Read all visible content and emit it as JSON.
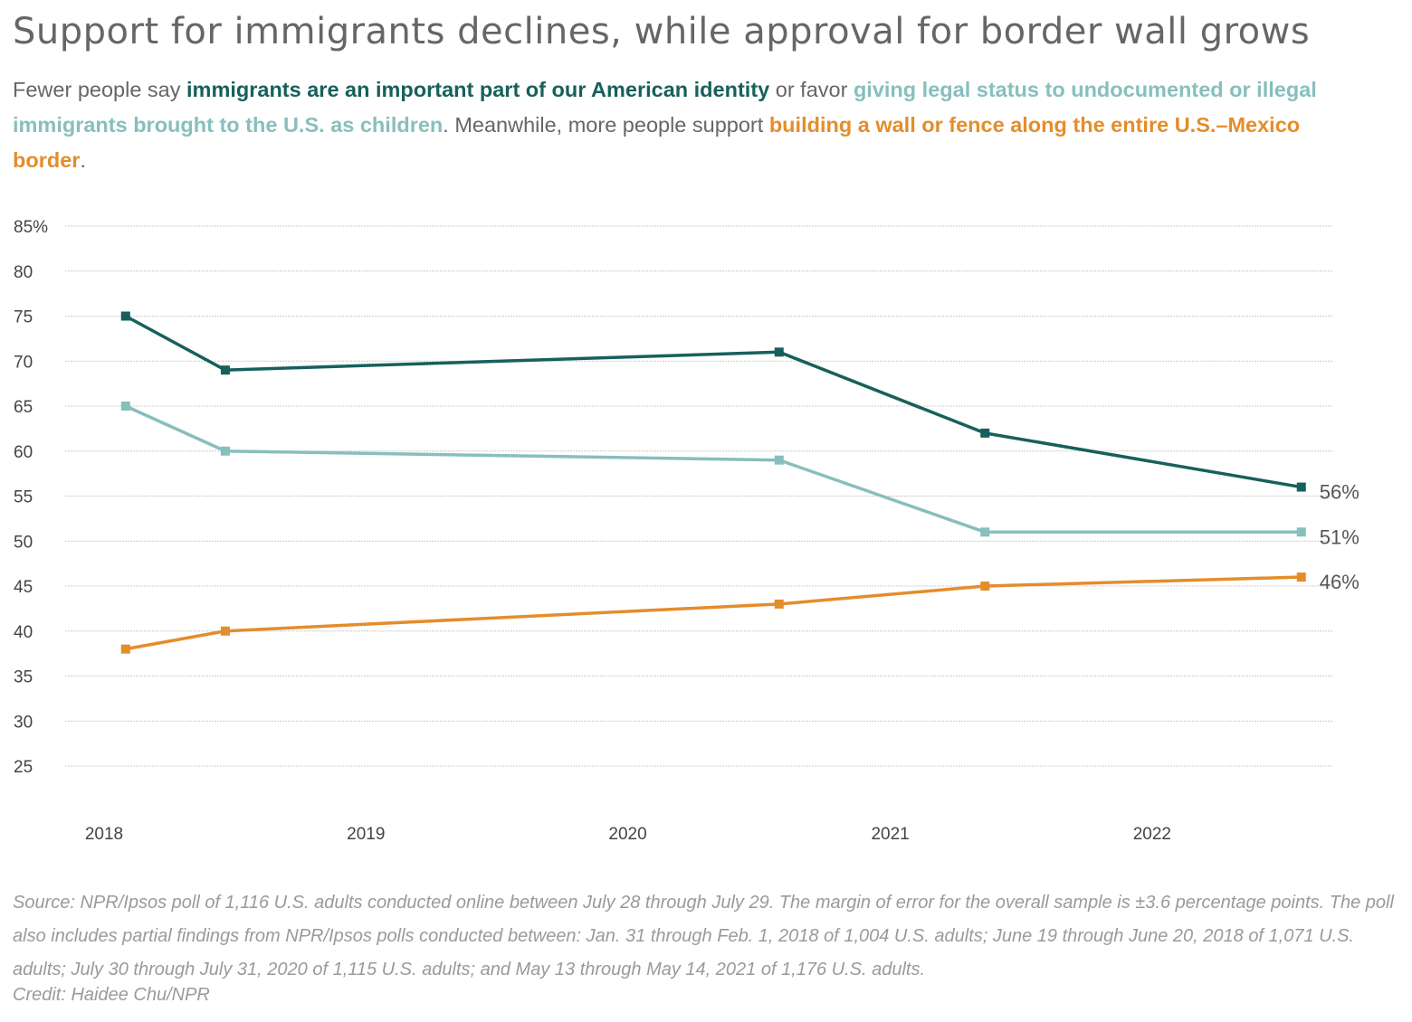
{
  "title": "Support for immigrants declines, while approval for border wall grows",
  "subtitle": {
    "p1": "Fewer people say ",
    "h1": "immigrants are an important part of our American identity",
    "p2": " or favor ",
    "h2": "giving legal status to undocumented or illegal immigrants brought to the U.S. as children",
    "p3": ". Meanwhile, more people support ",
    "h3": "building a wall or fence along the entire U.S.–Mexico border",
    "p4": "."
  },
  "colors": {
    "identity": "#17605c",
    "legal_status": "#87bfbd",
    "wall": "#e48d2b",
    "grid": "#cccccc",
    "text": "#666666"
  },
  "chart_data": {
    "type": "line",
    "x_ticks": [
      "2018",
      "2019",
      "2020",
      "2021",
      "2022"
    ],
    "x_tick_values": [
      "2018-01-01",
      "2019-01-01",
      "2020-01-01",
      "2021-01-01",
      "2022-01-01"
    ],
    "xlim": [
      "2018-01-01",
      "2022-08-15"
    ],
    "y_ticks": [
      "85%",
      "80",
      "75",
      "70",
      "65",
      "60",
      "55",
      "50",
      "45",
      "40",
      "35",
      "30",
      "25"
    ],
    "y_tick_values": [
      85,
      80,
      75,
      70,
      65,
      60,
      55,
      50,
      45,
      40,
      35,
      30,
      25
    ],
    "ylim": [
      25,
      85
    ],
    "grid": true,
    "x": [
      "2018-01-31",
      "2018-06-19",
      "2020-07-30",
      "2021-05-13",
      "2022-07-28"
    ],
    "series": [
      {
        "key": "identity",
        "values": [
          75,
          69,
          71,
          62,
          56
        ],
        "end_label": "56%"
      },
      {
        "key": "legal_status",
        "values": [
          65,
          60,
          59,
          51,
          51
        ],
        "end_label": "51%"
      },
      {
        "key": "wall",
        "values": [
          38,
          40,
          43,
          45,
          46
        ],
        "end_label": "46%"
      }
    ]
  },
  "source": "Source: NPR/Ipsos poll of 1,116 U.S. adults conducted online between July 28 through July 29. The margin of error for the overall sample is ±3.6 percentage points. The poll also includes partial findings from NPR/Ipsos polls conducted between: Jan. 31 through Feb. 1, 2018 of 1,004 U.S. adults; June 19 through June 20, 2018 of 1,071 U.S. adults; July 30 through July 31, 2020 of 1,115 U.S. adults; and May 13 through May 14, 2021 of 1,176 U.S. adults.",
  "credit": "Credit: Haidee Chu/NPR"
}
